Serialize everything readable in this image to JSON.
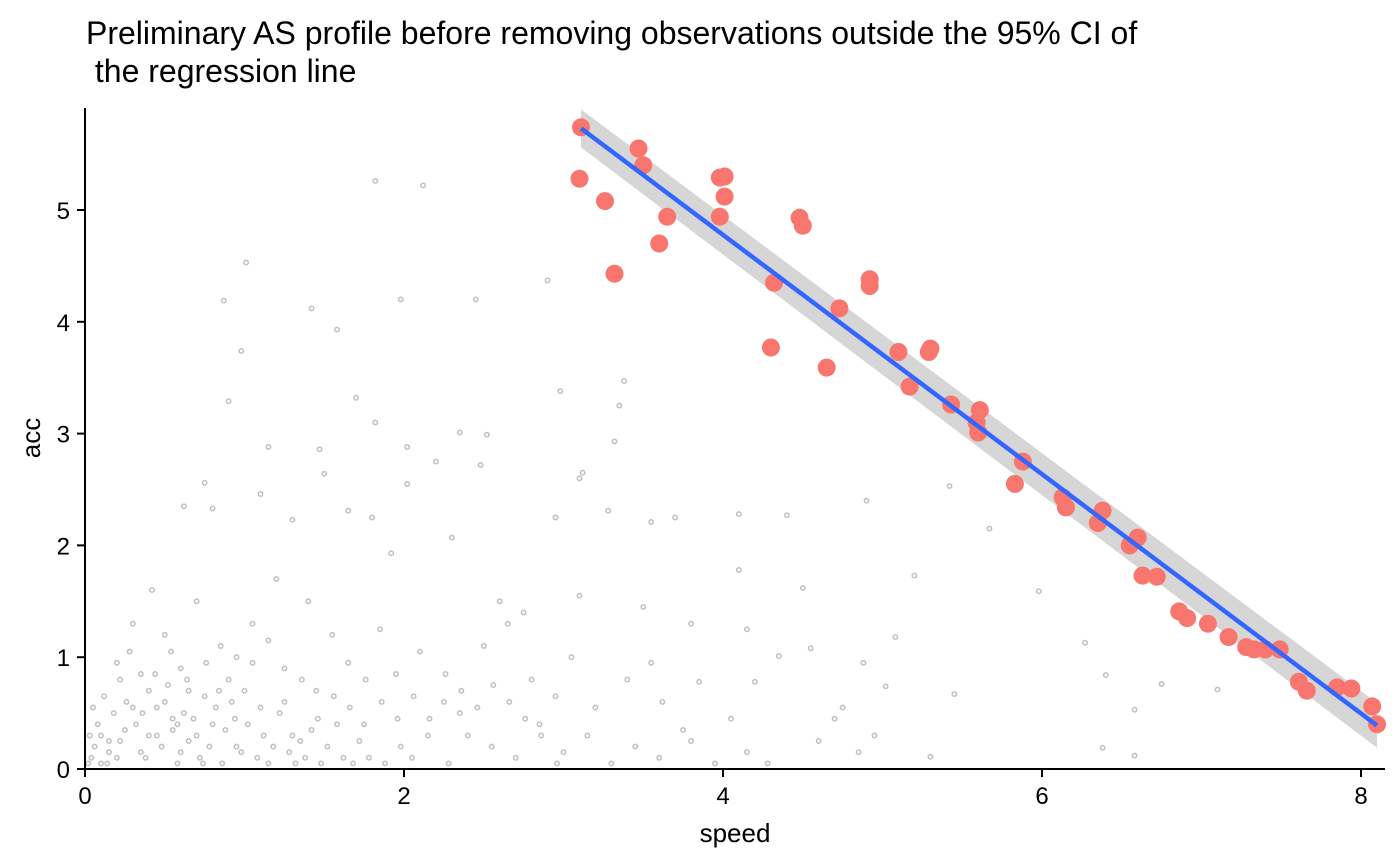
{
  "chart_data": {
    "type": "scatter",
    "title_lines": [
      "Preliminary AS profile before removing observations outside the 95% CI of",
      " the regression line"
    ],
    "xlabel": "speed",
    "ylabel": "acc",
    "xlim": [
      0,
      8.1
    ],
    "ylim": [
      0,
      5.9
    ],
    "xticks": [
      0,
      2,
      4,
      6,
      8
    ],
    "yticks": [
      0,
      1,
      2,
      3,
      4,
      5
    ],
    "grid": false,
    "legend": "none",
    "colors": {
      "highlight": "#F8766D",
      "background_points": "#000000",
      "regression_line": "#3366FF",
      "ci_band": "#999999"
    },
    "series": [
      {
        "role": "selected maximal acceleration points",
        "points": [
          [
            3.11,
            5.74
          ],
          [
            3.1,
            5.28
          ],
          [
            3.26,
            5.08
          ],
          [
            3.32,
            4.43
          ],
          [
            3.47,
            5.55
          ],
          [
            3.5,
            5.4
          ],
          [
            3.6,
            4.7
          ],
          [
            3.65,
            4.94
          ],
          [
            3.98,
            5.29
          ],
          [
            4.01,
            5.3
          ],
          [
            4.01,
            5.12
          ],
          [
            3.98,
            4.94
          ],
          [
            4.3,
            3.77
          ],
          [
            4.32,
            4.35
          ],
          [
            4.48,
            4.93
          ],
          [
            4.5,
            4.86
          ],
          [
            4.65,
            3.59
          ],
          [
            4.73,
            4.12
          ],
          [
            4.92,
            4.38
          ],
          [
            4.92,
            4.32
          ],
          [
            5.1,
            3.73
          ],
          [
            5.17,
            3.42
          ],
          [
            5.29,
            3.73
          ],
          [
            5.3,
            3.76
          ],
          [
            5.43,
            3.26
          ],
          [
            5.59,
            3.1
          ],
          [
            5.6,
            3.01
          ],
          [
            5.61,
            3.21
          ],
          [
            5.83,
            2.55
          ],
          [
            5.88,
            2.75
          ],
          [
            6.13,
            2.43
          ],
          [
            6.15,
            2.34
          ],
          [
            6.35,
            2.2
          ],
          [
            6.38,
            2.31
          ],
          [
            6.55,
            2.0
          ],
          [
            6.6,
            2.07
          ],
          [
            6.63,
            1.73
          ],
          [
            6.72,
            1.72
          ],
          [
            6.86,
            1.41
          ],
          [
            6.91,
            1.35
          ],
          [
            7.04,
            1.3
          ],
          [
            7.17,
            1.18
          ],
          [
            7.28,
            1.09
          ],
          [
            7.33,
            1.07
          ],
          [
            7.4,
            1.07
          ],
          [
            7.49,
            1.07
          ],
          [
            7.61,
            0.78
          ],
          [
            7.66,
            0.7
          ],
          [
            7.85,
            0.73
          ],
          [
            7.94,
            0.72
          ],
          [
            8.07,
            0.56
          ],
          [
            8.1,
            0.4
          ]
        ]
      }
    ],
    "background_points": [
      [
        2.12,
        5.22
      ],
      [
        1.82,
        5.26
      ],
      [
        1.01,
        4.53
      ],
      [
        0.87,
        4.19
      ],
      [
        1.42,
        4.12
      ],
      [
        1.58,
        3.93
      ],
      [
        1.98,
        4.2
      ],
      [
        2.45,
        4.2
      ],
      [
        2.9,
        4.37
      ],
      [
        0.98,
        3.74
      ],
      [
        0.9,
        3.29
      ],
      [
        1.7,
        3.32
      ],
      [
        2.98,
        3.38
      ],
      [
        3.38,
        3.47
      ],
      [
        3.35,
        3.25
      ],
      [
        1.15,
        2.88
      ],
      [
        1.47,
        2.86
      ],
      [
        1.82,
        3.1
      ],
      [
        2.52,
        2.99
      ],
      [
        2.35,
        3.01
      ],
      [
        3.32,
        2.93
      ],
      [
        3.12,
        2.65
      ],
      [
        3.1,
        2.6
      ],
      [
        2.02,
        2.88
      ],
      [
        2.2,
        2.75
      ],
      [
        2.02,
        2.55
      ],
      [
        1.5,
        2.64
      ],
      [
        0.62,
        2.35
      ],
      [
        0.75,
        2.56
      ],
      [
        0.8,
        2.33
      ],
      [
        1.1,
        2.46
      ],
      [
        1.3,
        2.23
      ],
      [
        1.65,
        2.31
      ],
      [
        1.8,
        2.25
      ],
      [
        1.92,
        1.93
      ],
      [
        2.3,
        2.07
      ],
      [
        2.48,
        2.72
      ],
      [
        2.95,
        2.25
      ],
      [
        3.28,
        2.31
      ],
      [
        3.55,
        2.21
      ],
      [
        3.7,
        2.25
      ],
      [
        4.1,
        2.28
      ],
      [
        4.4,
        2.27
      ],
      [
        4.1,
        1.78
      ],
      [
        4.5,
        1.62
      ],
      [
        4.9,
        2.4
      ],
      [
        5.08,
        1.18
      ],
      [
        5.2,
        1.73
      ],
      [
        5.42,
        2.53
      ],
      [
        5.67,
        2.15
      ],
      [
        5.98,
        1.59
      ],
      [
        6.27,
        1.13
      ],
      [
        6.4,
        0.84
      ],
      [
        6.58,
        0.53
      ],
      [
        6.75,
        0.76
      ],
      [
        7.1,
        0.71
      ],
      [
        6.38,
        0.19
      ],
      [
        6.58,
        0.12
      ],
      [
        5.45,
        0.67
      ],
      [
        5.3,
        0.11
      ],
      [
        5.02,
        0.74
      ],
      [
        4.85,
        0.15
      ],
      [
        4.7,
        0.45
      ],
      [
        4.55,
        1.08
      ],
      [
        4.35,
        1.01
      ],
      [
        4.2,
        0.78
      ],
      [
        4.05,
        0.45
      ],
      [
        3.85,
        0.78
      ],
      [
        3.75,
        0.35
      ],
      [
        3.62,
        0.6
      ],
      [
        3.55,
        0.95
      ],
      [
        3.4,
        0.8
      ],
      [
        3.2,
        0.55
      ],
      [
        3.05,
        1.0
      ],
      [
        2.95,
        0.65
      ],
      [
        2.8,
        0.8
      ],
      [
        2.65,
        1.3
      ],
      [
        2.5,
        1.1
      ],
      [
        2.4,
        0.3
      ],
      [
        2.25,
        0.6
      ],
      [
        2.1,
        1.05
      ],
      [
        1.95,
        0.85
      ],
      [
        1.85,
        1.25
      ],
      [
        1.75,
        0.4
      ],
      [
        1.65,
        0.95
      ],
      [
        1.55,
        1.2
      ],
      [
        1.45,
        0.7
      ],
      [
        1.4,
        1.5
      ],
      [
        1.3,
        0.3
      ],
      [
        1.25,
        0.9
      ],
      [
        1.2,
        1.7
      ],
      [
        1.1,
        0.55
      ],
      [
        1.05,
        1.3
      ],
      [
        0.95,
        0.2
      ],
      [
        0.9,
        0.8
      ],
      [
        0.85,
        1.1
      ],
      [
        0.8,
        0.4
      ],
      [
        0.75,
        0.65
      ],
      [
        0.7,
        1.5
      ],
      [
        0.65,
        0.25
      ],
      [
        0.6,
        0.9
      ],
      [
        0.55,
        0.45
      ],
      [
        0.5,
        1.2
      ],
      [
        0.45,
        0.3
      ],
      [
        0.42,
        1.6
      ],
      [
        0.4,
        0.7
      ],
      [
        0.35,
        0.15
      ],
      [
        0.3,
        0.55
      ],
      [
        0.28,
        1.05
      ],
      [
        0.25,
        0.35
      ],
      [
        0.22,
        0.8
      ],
      [
        0.2,
        0.1
      ],
      [
        0.18,
        0.5
      ],
      [
        0.15,
        0.25
      ],
      [
        0.12,
        0.65
      ],
      [
        0.1,
        0.05
      ],
      [
        0.08,
        0.4
      ],
      [
        0.06,
        0.2
      ],
      [
        0.05,
        0.55
      ],
      [
        0.04,
        0.1
      ],
      [
        0.03,
        0.3
      ],
      [
        0.02,
        0.05
      ],
      [
        0.5,
        0.6
      ],
      [
        0.55,
        0.35
      ],
      [
        0.6,
        0.15
      ],
      [
        0.62,
        0.5
      ],
      [
        0.48,
        0.2
      ],
      [
        0.52,
        0.75
      ],
      [
        0.58,
        0.4
      ],
      [
        0.45,
        0.55
      ],
      [
        0.4,
        0.3
      ],
      [
        0.38,
        0.1
      ],
      [
        0.65,
        0.7
      ],
      [
        0.7,
        0.3
      ],
      [
        0.72,
        0.1
      ],
      [
        0.68,
        0.45
      ],
      [
        0.78,
        0.2
      ],
      [
        0.82,
        0.55
      ],
      [
        0.88,
        0.35
      ],
      [
        0.92,
        0.6
      ],
      [
        0.98,
        0.15
      ],
      [
        1.02,
        0.4
      ],
      [
        1.08,
        0.1
      ],
      [
        1.12,
        0.3
      ],
      [
        1.15,
        0.05
      ],
      [
        1.18,
        0.2
      ],
      [
        1.22,
        0.5
      ],
      [
        1.28,
        0.15
      ],
      [
        1.32,
        0.05
      ],
      [
        1.35,
        0.25
      ],
      [
        1.38,
        0.1
      ],
      [
        1.42,
        0.35
      ],
      [
        1.48,
        0.05
      ],
      [
        1.52,
        0.2
      ],
      [
        1.58,
        0.4
      ],
      [
        1.62,
        0.1
      ],
      [
        1.68,
        0.05
      ],
      [
        1.72,
        0.25
      ],
      [
        1.78,
        0.1
      ],
      [
        1.88,
        0.05
      ],
      [
        1.98,
        0.2
      ],
      [
        2.05,
        0.1
      ],
      [
        2.15,
        0.3
      ],
      [
        2.28,
        0.05
      ],
      [
        2.35,
        0.5
      ],
      [
        2.55,
        0.2
      ],
      [
        2.7,
        0.1
      ],
      [
        2.85,
        0.4
      ],
      [
        3.0,
        0.15
      ],
      [
        3.15,
        0.3
      ],
      [
        3.3,
        0.05
      ],
      [
        3.45,
        0.2
      ],
      [
        3.6,
        0.1
      ],
      [
        3.8,
        0.25
      ],
      [
        3.95,
        0.05
      ],
      [
        4.15,
        0.15
      ],
      [
        4.28,
        0.05
      ],
      [
        4.6,
        0.25
      ],
      [
        4.95,
        0.3
      ],
      [
        1.0,
        0.7
      ],
      [
        1.05,
        0.95
      ],
      [
        0.95,
        1.0
      ],
      [
        1.15,
        1.15
      ],
      [
        0.2,
        0.95
      ],
      [
        0.3,
        1.3
      ],
      [
        0.35,
        0.85
      ],
      [
        0.1,
        0.3
      ],
      [
        0.14,
        0.05
      ],
      [
        0.26,
        0.6
      ],
      [
        0.32,
        0.4
      ],
      [
        0.58,
        0.05
      ],
      [
        0.74,
        0.05
      ],
      [
        0.86,
        0.05
      ],
      [
        0.94,
        0.45
      ],
      [
        1.25,
        0.6
      ],
      [
        1.36,
        0.8
      ],
      [
        1.46,
        0.45
      ],
      [
        1.56,
        0.65
      ],
      [
        1.66,
        0.55
      ],
      [
        1.76,
        0.8
      ],
      [
        1.86,
        0.6
      ],
      [
        1.96,
        0.45
      ],
      [
        2.06,
        0.65
      ],
      [
        2.16,
        0.45
      ],
      [
        2.26,
        0.85
      ],
      [
        2.36,
        0.7
      ],
      [
        2.46,
        0.55
      ],
      [
        2.56,
        0.75
      ],
      [
        2.66,
        0.6
      ],
      [
        2.76,
        0.45
      ],
      [
        2.86,
        0.3
      ],
      [
        2.96,
        0.05
      ],
      [
        0.15,
        0.15
      ],
      [
        0.22,
        0.25
      ],
      [
        0.36,
        0.5
      ],
      [
        0.44,
        0.85
      ],
      [
        0.54,
        1.05
      ],
      [
        0.64,
        0.8
      ],
      [
        0.76,
        0.95
      ],
      [
        0.84,
        0.7
      ],
      [
        2.6,
        1.5
      ],
      [
        2.75,
        1.4
      ],
      [
        3.1,
        1.55
      ],
      [
        3.5,
        1.45
      ],
      [
        3.8,
        1.3
      ],
      [
        4.15,
        1.25
      ],
      [
        4.75,
        0.55
      ],
      [
        4.88,
        0.95
      ]
    ],
    "regression_line": {
      "x_start": 3.11,
      "y_start": 5.73,
      "x_end": 8.1,
      "y_end": 0.39
    }
  }
}
